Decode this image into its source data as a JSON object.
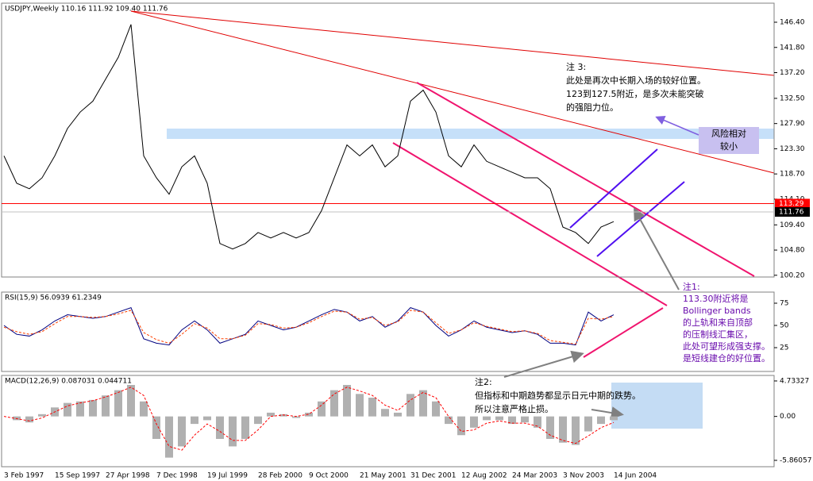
{
  "chart_data": [
    {
      "type": "line",
      "title": "USDJPY,Weekly 110.16 111.92 109.40 111.76",
      "categories": [
        "3 Feb 1997",
        null,
        null,
        null,
        "15 Sep 1997",
        null,
        null,
        null,
        "27 Apr 1998",
        null,
        null,
        null,
        "7 Dec 1998",
        null,
        null,
        null,
        "19 Jul 1999",
        null,
        null,
        null,
        "28 Feb 2000",
        null,
        null,
        null,
        "9 Oct 2000",
        null,
        null,
        null,
        "21 May 2001",
        null,
        null,
        null,
        "31 Dec 2001",
        null,
        null,
        null,
        "12 Aug 2002",
        null,
        null,
        null,
        "24 Mar 2003",
        null,
        null,
        null,
        "3 Nov 2003",
        null,
        null,
        null,
        "14 Jun 2004"
      ],
      "series": [
        {
          "color": "#000000",
          "values": [
            122,
            117,
            116,
            118,
            122,
            127,
            130,
            132,
            136,
            140,
            146,
            122,
            118,
            115,
            120,
            122,
            117,
            106,
            105,
            106,
            108,
            107,
            108,
            107,
            108,
            112,
            118,
            124,
            122,
            124,
            120,
            122,
            132,
            134,
            130,
            122,
            120,
            124,
            121,
            120,
            119,
            118,
            118,
            116,
            109,
            108,
            106,
            109,
            110
          ]
        }
      ],
      "ylim": [
        99.88,
        149.88
      ],
      "yticks": [
        {
          "value": 146.4,
          "label": "146.40"
        },
        {
          "value": 141.8,
          "label": "141.80"
        },
        {
          "value": 137.2,
          "label": "137.20"
        },
        {
          "value": 132.5,
          "label": "132.50"
        },
        {
          "value": 127.9,
          "label": "127.90"
        },
        {
          "value": 123.3,
          "label": "123.30"
        },
        {
          "value": 118.7,
          "label": "118.70"
        },
        {
          "value": 114.1,
          "label": "114.10"
        },
        {
          "value": 109.4,
          "label": "109.40"
        },
        {
          "value": 104.8,
          "label": "104.80"
        },
        {
          "value": 100.2,
          "label": "100.20"
        }
      ],
      "price_lines": [
        {
          "value": 113.29,
          "color": "#ff0000"
        },
        {
          "value": 111.76,
          "color": "#000000"
        }
      ]
    },
    {
      "type": "line",
      "title": "RSI(15,9) 56.0939 61.2349",
      "series": [
        {
          "color": "#000080",
          "values": [
            50,
            40,
            38,
            45,
            55,
            62,
            60,
            58,
            60,
            65,
            70,
            35,
            30,
            28,
            45,
            55,
            45,
            30,
            35,
            40,
            55,
            50,
            45,
            48,
            55,
            62,
            68,
            65,
            55,
            60,
            48,
            55,
            70,
            65,
            50,
            38,
            45,
            55,
            48,
            45,
            42,
            44,
            40,
            30,
            30,
            28,
            65,
            55,
            62
          ]
        },
        {
          "color": "#ff4000",
          "values": [
            48,
            43,
            40,
            43,
            52,
            60,
            60,
            59,
            60,
            63,
            67,
            42,
            34,
            30,
            40,
            52,
            47,
            35,
            35,
            39,
            52,
            51,
            47,
            48,
            53,
            60,
            66,
            65,
            57,
            59,
            50,
            54,
            67,
            65,
            53,
            41,
            45,
            53,
            49,
            46,
            43,
            44,
            41,
            33,
            31,
            29,
            58,
            57,
            60
          ]
        }
      ],
      "ylim": [
        -1.8,
        87.5
      ],
      "yticks": [
        75,
        50,
        25
      ]
    },
    {
      "type": "bar",
      "title": "MACD(12,26,9) 0.087031 0.044711",
      "color": "#b0b0b0",
      "values": [
        0,
        -0.5,
        -0.8,
        0.3,
        1.2,
        1.8,
        2,
        2.2,
        2.8,
        3.5,
        4.2,
        2,
        -3,
        -5.5,
        -4,
        -1,
        -0.5,
        -3,
        -4,
        -3,
        -1,
        0.5,
        0.3,
        -0.2,
        0.5,
        2,
        3.5,
        4.2,
        3,
        2.5,
        1,
        0.5,
        3,
        3.5,
        2,
        -1,
        -2.5,
        -1.5,
        -0.5,
        -0.5,
        -1,
        -0.8,
        -1.5,
        -3,
        -3.5,
        -3.8,
        -2,
        -1,
        -0.5
      ],
      "series": [
        {
          "color": "#ff0000",
          "values": [
            0,
            -0.3,
            -0.6,
            -0.2,
            0.6,
            1.4,
            1.8,
            2.1,
            2.6,
            3.2,
            3.9,
            2.8,
            -1,
            -4,
            -4.5,
            -2.5,
            -1,
            -2,
            -3.2,
            -3.2,
            -1.8,
            0,
            0.2,
            0,
            0.3,
            1.5,
            3,
            3.9,
            3.4,
            2.8,
            1.5,
            0.8,
            2.2,
            3.2,
            2.5,
            0,
            -2,
            -1.8,
            -0.9,
            -0.6,
            -0.9,
            -0.9,
            -1.3,
            -2.5,
            -3.2,
            -3.6,
            -2.6,
            -1.5,
            -0.8
          ]
        }
      ],
      "ylim": [
        -6.71,
        5.47
      ],
      "yticks": [
        4.73327,
        {
          "value": 0,
          "label": "0.00"
        },
        -5.86057
      ]
    }
  ],
  "annotations": {
    "note3": [
      "注 3:",
      "此处是再次中长期入场的较好位置。",
      "123到127.5附近，是多次未能突破",
      "的强阻力位。"
    ],
    "risk_box": [
      "风险相对",
      "较小"
    ],
    "note1": [
      "注1:",
      "113.30附近将是",
      "Bollinger bands",
      "的上轨和来自顶部",
      "的压制线汇集区，",
      "此处可望形成强支撑。",
      "是短线建仓的好位置。"
    ],
    "note2": [
      "注2:",
      "但指标和中期趋势都显示日元中期的跌势。",
      "所以注意严格止损。"
    ]
  }
}
